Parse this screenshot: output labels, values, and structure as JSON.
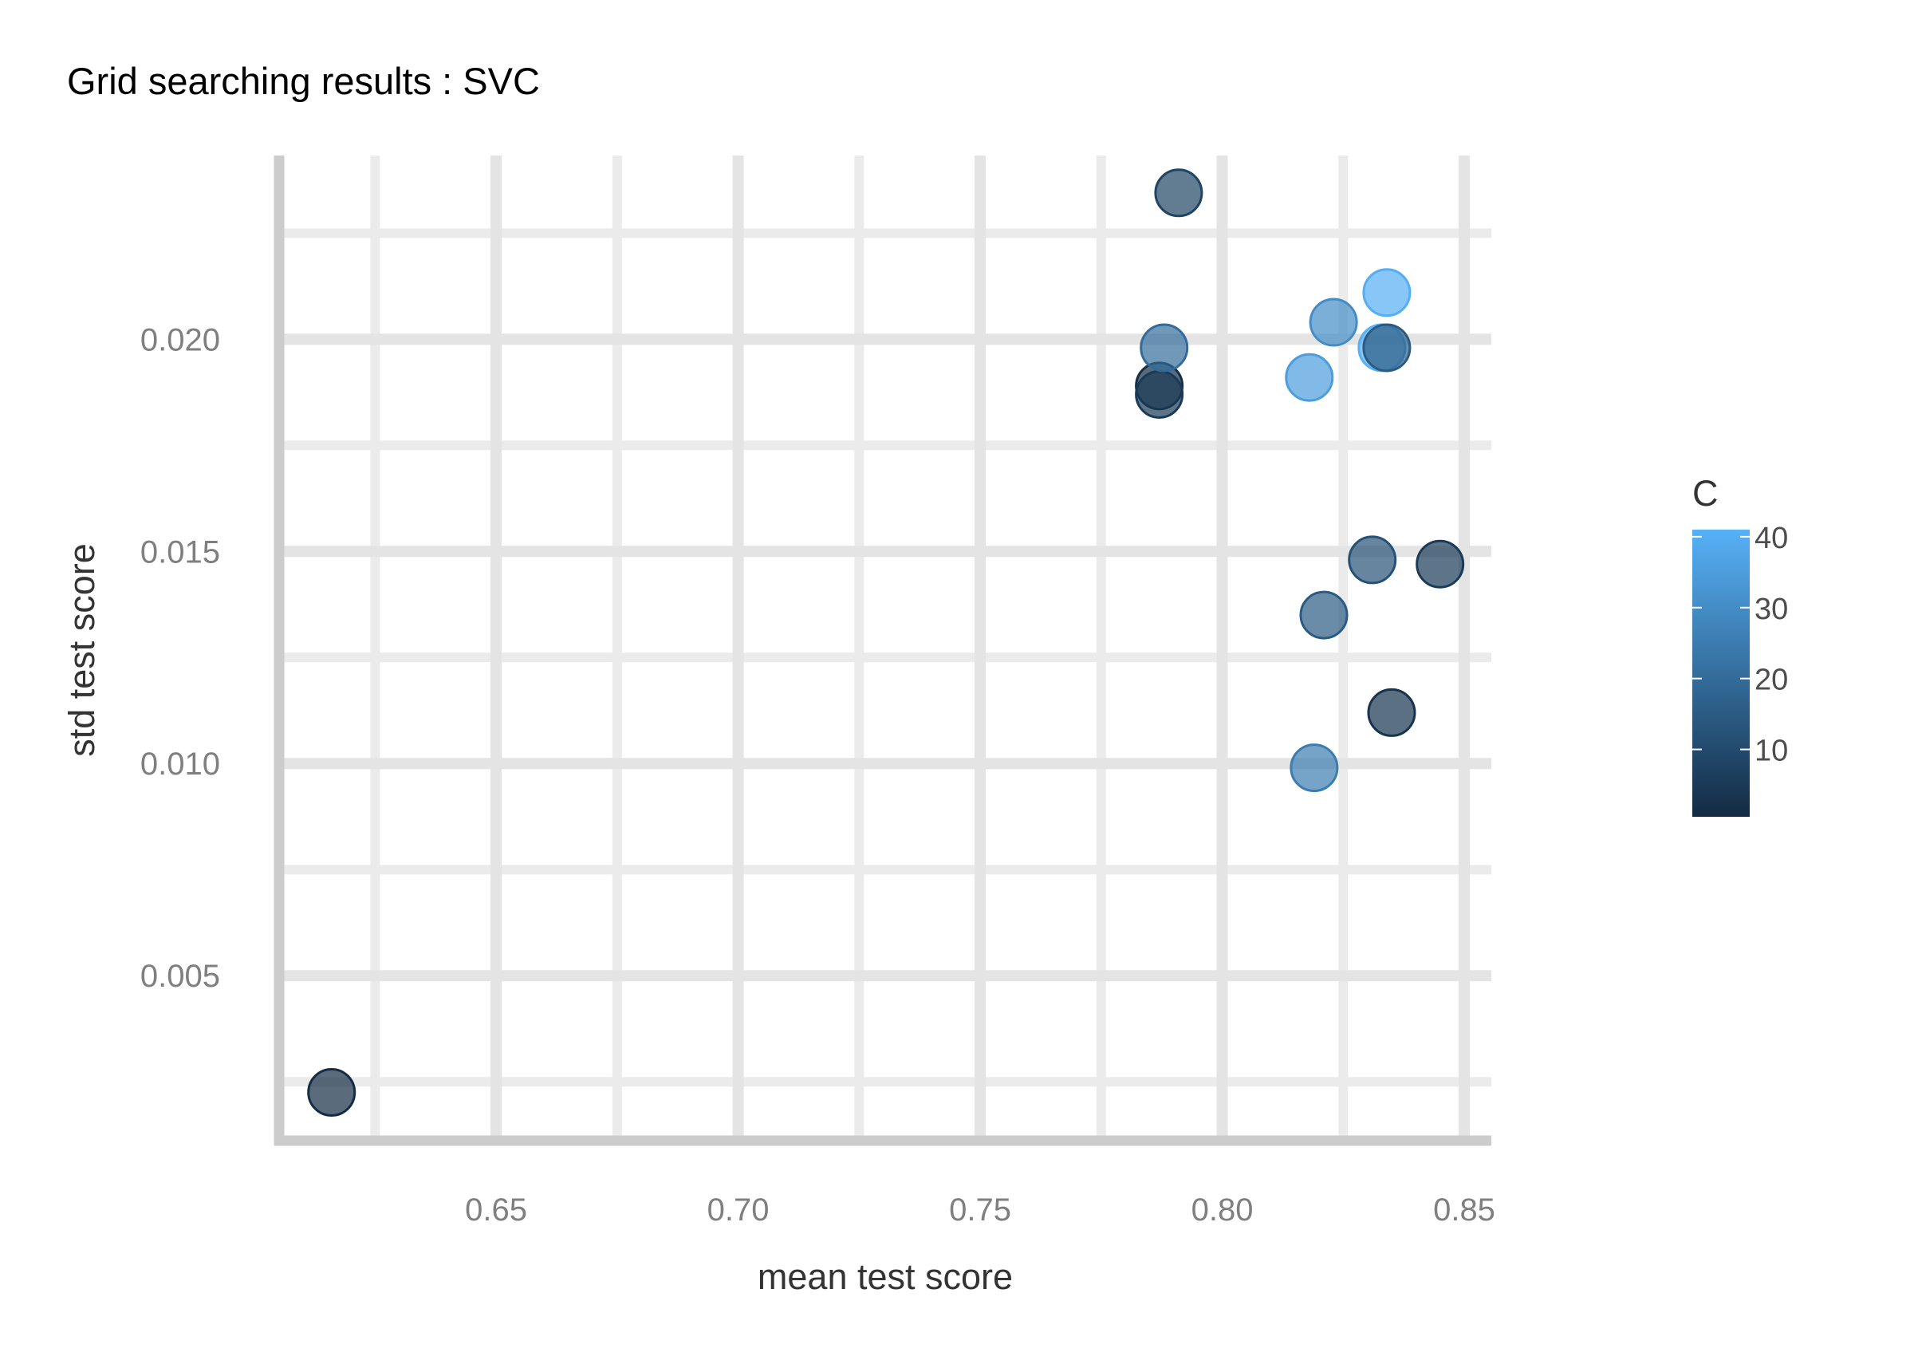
{
  "chart_data": {
    "type": "scatter",
    "title": "Grid searching results :  SVC",
    "xlabel": "mean test score",
    "ylabel": "std test score",
    "xlim": [
      0.6055,
      0.8556
    ],
    "ylim": [
      0.00115,
      0.02433
    ],
    "x_ticks": [
      0.65,
      0.7,
      0.75,
      0.8,
      0.85
    ],
    "x_tick_labels": [
      "0.65",
      "0.70",
      "0.75",
      "0.80",
      "0.85"
    ],
    "y_ticks": [
      0.005,
      0.01,
      0.015,
      0.02
    ],
    "y_tick_labels": [
      "0.005",
      "0.010",
      "0.015",
      "0.020"
    ],
    "grid": true,
    "legend": {
      "title": "C",
      "placement": "right",
      "type": "colorbar",
      "range": [
        0.5,
        41
      ],
      "ticks": [
        10,
        20,
        30,
        40
      ],
      "tick_labels": [
        "10",
        "20",
        "30",
        "40"
      ],
      "color_low": "#132b43",
      "color_high": "#56b1f7"
    },
    "points": [
      {
        "x": 0.616,
        "y": 0.00225,
        "c": 1
      },
      {
        "x": 0.791,
        "y": 0.02345,
        "c": 8
      },
      {
        "x": 0.787,
        "y": 0.0189,
        "c": 1
      },
      {
        "x": 0.787,
        "y": 0.0187,
        "c": 5
      },
      {
        "x": 0.788,
        "y": 0.0198,
        "c": 20
      },
      {
        "x": 0.818,
        "y": 0.0191,
        "c": 35
      },
      {
        "x": 0.823,
        "y": 0.0204,
        "c": 30
      },
      {
        "x": 0.833,
        "y": 0.0198,
        "c": 41
      },
      {
        "x": 0.834,
        "y": 0.0198,
        "c": 15
      },
      {
        "x": 0.834,
        "y": 0.0211,
        "c": 40
      },
      {
        "x": 0.831,
        "y": 0.0148,
        "c": 12
      },
      {
        "x": 0.845,
        "y": 0.0147,
        "c": 5
      },
      {
        "x": 0.821,
        "y": 0.0135,
        "c": 15
      },
      {
        "x": 0.835,
        "y": 0.0112,
        "c": 3
      },
      {
        "x": 0.819,
        "y": 0.0099,
        "c": 25
      }
    ]
  }
}
